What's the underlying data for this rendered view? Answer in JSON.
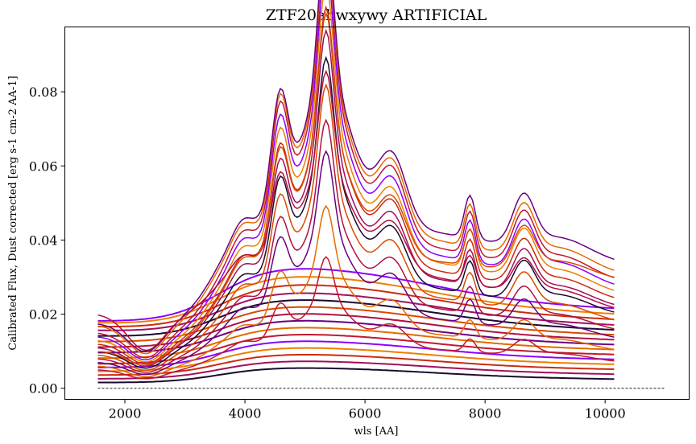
{
  "chart_data": {
    "type": "line",
    "title": "ZTF20abwxywy ARTIFICIAL",
    "xlabel": "wls [AA]",
    "ylabel": "Calibrated Flux, Dust corrected [erg s-1 cm-2 AA-1]",
    "xlim": [
      1000,
      11400
    ],
    "ylim": [
      -0.003,
      0.0975
    ],
    "xticks": [
      2000,
      4000,
      6000,
      8000,
      10000
    ],
    "yticks": [
      0.0,
      0.02,
      0.04,
      0.06,
      0.08
    ],
    "xtick_labels": [
      "2000",
      "4000",
      "6000",
      "8000",
      "10000"
    ],
    "ytick_labels": [
      "0.00",
      "0.02",
      "0.04",
      "0.06",
      "0.08"
    ],
    "grid": false,
    "legend": "none",
    "x_range": [
      1550,
      10150
    ],
    "zero_line": {
      "x": [
        1550,
        11000
      ],
      "y": 0.0,
      "style": "dashed",
      "color": "#000000"
    },
    "colormap": [
      "#1a0a2e",
      "#6a0080",
      "#8b00ff",
      "#a0105a",
      "#b01040",
      "#c01830",
      "#cc2a10",
      "#d84a00",
      "#e56a00",
      "#ee7f00"
    ],
    "series": [
      {
        "kind": "broad",
        "mid": 0.0065,
        "start": 0.0015,
        "end": 0.0005
      },
      {
        "kind": "broad",
        "mid": 0.0085,
        "start": 0.0025,
        "end": 0.0015
      },
      {
        "kind": "broad",
        "mid": 0.0105,
        "start": 0.0035,
        "end": 0.0025
      },
      {
        "kind": "broad",
        "mid": 0.0125,
        "start": 0.0045,
        "end": 0.0035
      },
      {
        "kind": "broad",
        "mid": 0.0145,
        "start": 0.0055,
        "end": 0.0045
      },
      {
        "kind": "broad",
        "mid": 0.0165,
        "start": 0.0065,
        "end": 0.0055
      },
      {
        "kind": "broad",
        "mid": 0.0185,
        "start": 0.008,
        "end": 0.0065
      },
      {
        "kind": "broad",
        "mid": 0.0205,
        "start": 0.0095,
        "end": 0.0075
      },
      {
        "kind": "broad",
        "mid": 0.0225,
        "start": 0.011,
        "end": 0.0085
      },
      {
        "kind": "broad",
        "mid": 0.0245,
        "start": 0.0125,
        "end": 0.0095
      },
      {
        "kind": "broad",
        "mid": 0.0265,
        "start": 0.014,
        "end": 0.0105
      },
      {
        "kind": "broad",
        "mid": 0.0285,
        "start": 0.0155,
        "end": 0.0115
      },
      {
        "kind": "broad",
        "mid": 0.031,
        "start": 0.0165,
        "end": 0.0125
      },
      {
        "kind": "broad",
        "mid": 0.0335,
        "start": 0.0175,
        "end": 0.0135
      },
      {
        "kind": "broad",
        "mid": 0.036,
        "start": 0.018,
        "end": 0.0145
      },
      {
        "kind": "peaked",
        "amp": 0.3,
        "start": 0.005,
        "end": 0.002
      },
      {
        "kind": "peaked",
        "amp": 0.42,
        "start": 0.006,
        "end": 0.003
      },
      {
        "kind": "peaked",
        "amp": 0.55,
        "start": 0.007,
        "end": 0.004
      },
      {
        "kind": "peaked",
        "amp": 0.62,
        "start": 0.008,
        "end": 0.005
      },
      {
        "kind": "peaked",
        "amp": 0.7,
        "start": 0.009,
        "end": 0.006
      },
      {
        "kind": "peaked",
        "amp": 0.76,
        "start": 0.01,
        "end": 0.007
      },
      {
        "kind": "peaked",
        "amp": 0.82,
        "start": 0.011,
        "end": 0.008
      },
      {
        "kind": "peaked",
        "amp": 0.87,
        "start": 0.012,
        "end": 0.009
      },
      {
        "kind": "peaked",
        "amp": 0.92,
        "start": 0.013,
        "end": 0.01
      },
      {
        "kind": "peaked",
        "amp": 0.96,
        "start": 0.014,
        "end": 0.011
      },
      {
        "kind": "peaked",
        "amp": 1.0,
        "start": 0.015,
        "end": 0.012
      },
      {
        "kind": "peaked",
        "amp": 1.0,
        "start": 0.017,
        "end": 0.014
      },
      {
        "kind": "peaked",
        "amp": 1.0,
        "start": 0.0175,
        "end": 0.017
      },
      {
        "kind": "peaked",
        "amp": 0.66,
        "start": 0.02,
        "end": 0.01
      },
      {
        "kind": "peaked",
        "amp": 0.84,
        "start": 0.01,
        "end": 0.015
      }
    ]
  }
}
